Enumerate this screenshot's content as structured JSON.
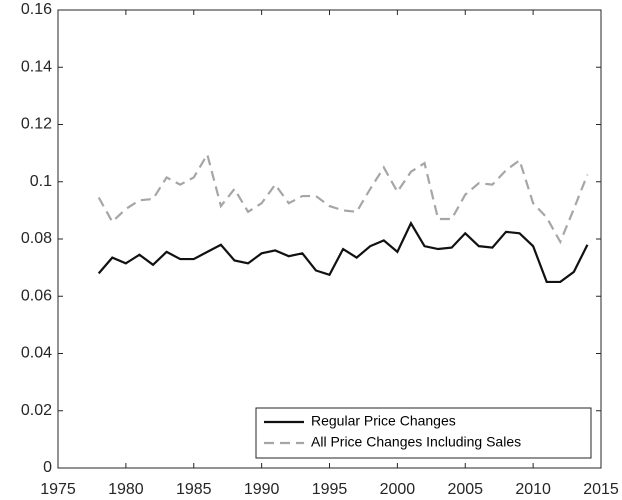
{
  "chart_data": {
    "type": "line",
    "x": [
      1978,
      1979,
      1980,
      1981,
      1982,
      1983,
      1984,
      1985,
      1986,
      1987,
      1988,
      1989,
      1990,
      1991,
      1992,
      1993,
      1994,
      1995,
      1996,
      1997,
      1998,
      1999,
      2000,
      2001,
      2002,
      2003,
      2004,
      2005,
      2006,
      2007,
      2008,
      2009,
      2010,
      2011,
      2012,
      2013,
      2014
    ],
    "series": [
      {
        "name": "Regular Price Changes",
        "color": "#111111",
        "dash": false,
        "values": [
          0.068,
          0.0735,
          0.0715,
          0.0745,
          0.071,
          0.0755,
          0.073,
          0.073,
          0.0755,
          0.078,
          0.0725,
          0.0715,
          0.075,
          0.076,
          0.074,
          0.075,
          0.069,
          0.0675,
          0.0765,
          0.0735,
          0.0775,
          0.0795,
          0.0755,
          0.0855,
          0.0775,
          0.0765,
          0.077,
          0.082,
          0.0775,
          0.077,
          0.0825,
          0.082,
          0.0775,
          0.065,
          0.065,
          0.0685,
          0.078
        ]
      },
      {
        "name": "All Price Changes Including Sales",
        "color": "#a6a6a6",
        "dash": true,
        "values": [
          0.0945,
          0.086,
          0.0905,
          0.0935,
          0.094,
          0.1015,
          0.099,
          0.1015,
          0.1095,
          0.0915,
          0.0975,
          0.0895,
          0.0925,
          0.099,
          0.0925,
          0.095,
          0.095,
          0.0915,
          0.09,
          0.0895,
          0.0975,
          0.105,
          0.0965,
          0.1035,
          0.1065,
          0.087,
          0.087,
          0.0955,
          0.0995,
          0.099,
          0.104,
          0.1075,
          0.0925,
          0.0875,
          0.079,
          0.0905,
          0.1025
        ]
      }
    ],
    "xlim": [
      1975,
      2015
    ],
    "xticks": [
      1975,
      1980,
      1985,
      1990,
      1995,
      2000,
      2005,
      2010,
      2015
    ],
    "ylim": [
      0,
      0.16
    ],
    "yticks": [
      0,
      0.02,
      0.04,
      0.06,
      0.08,
      0.1,
      0.12,
      0.14,
      0.16
    ],
    "legend": "lower right"
  }
}
